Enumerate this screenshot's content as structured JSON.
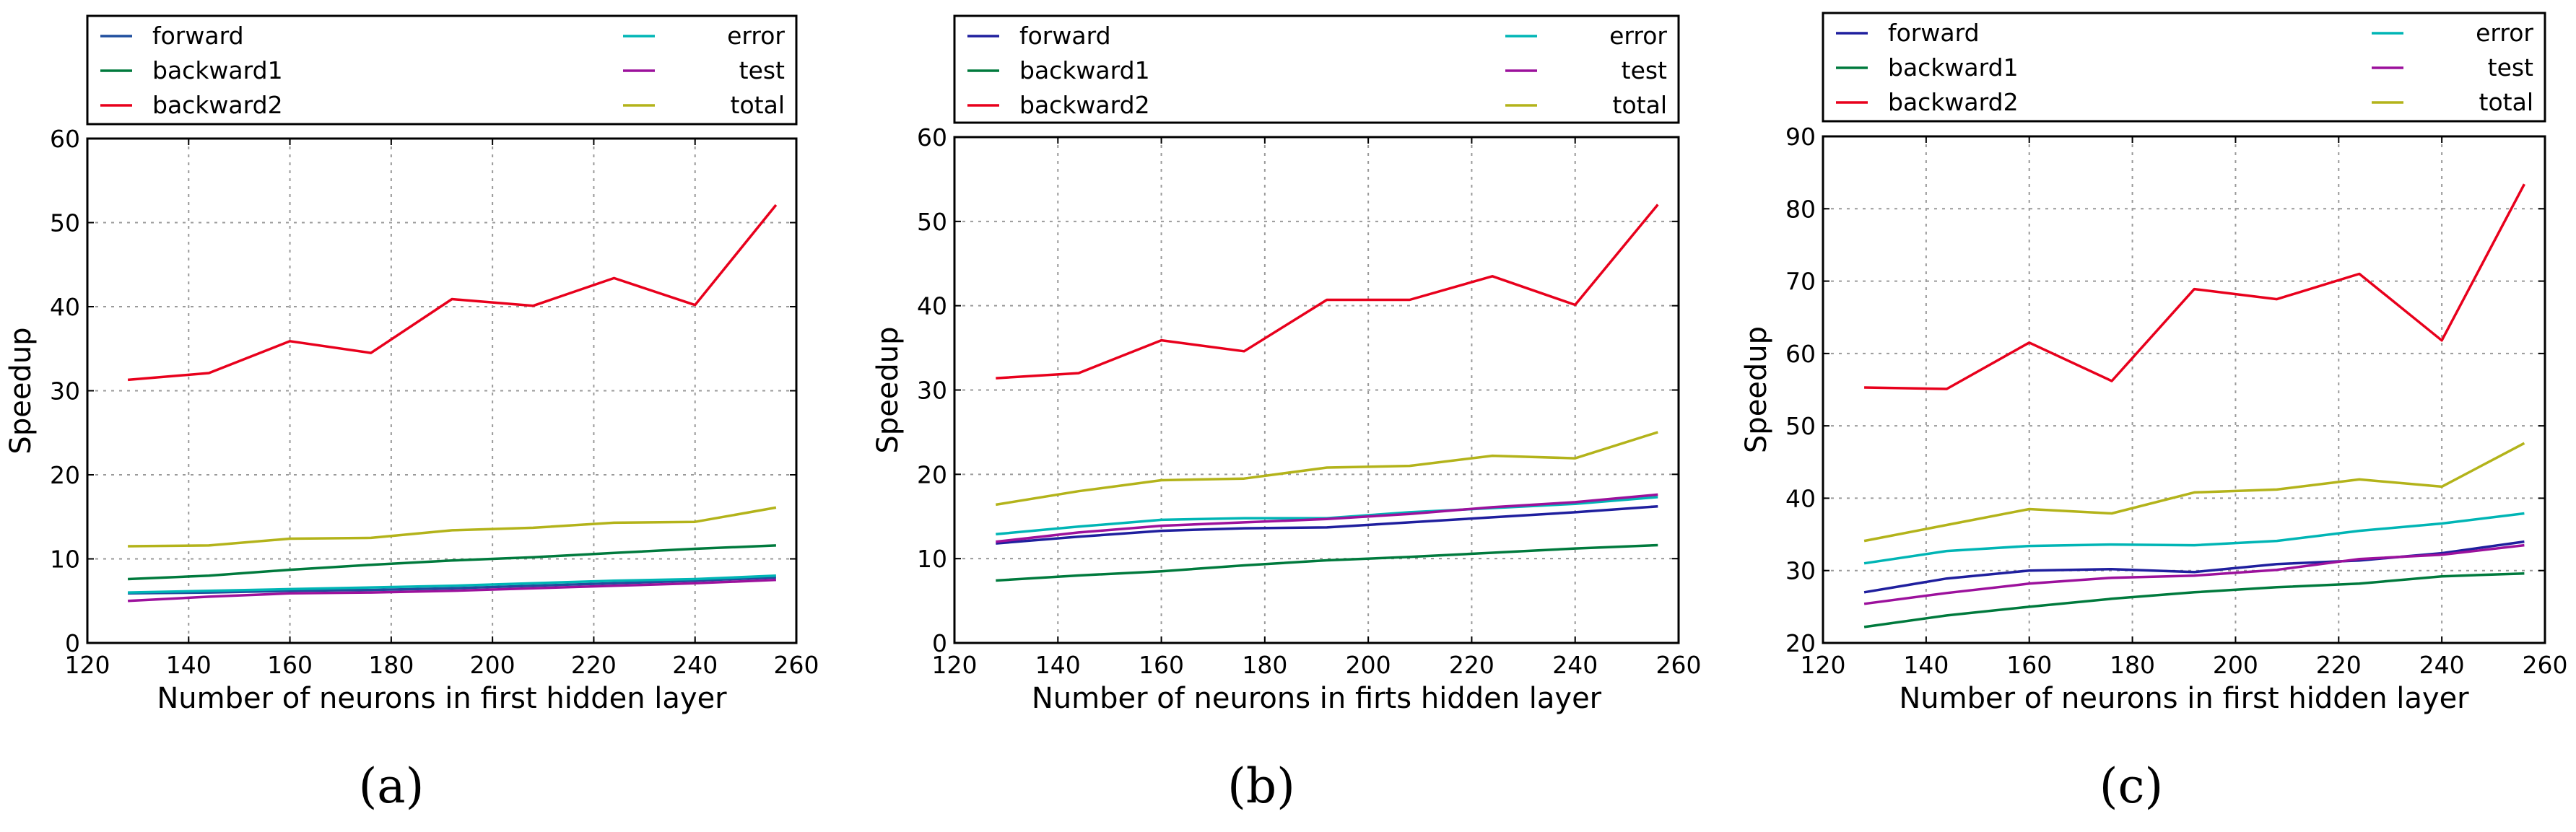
{
  "chart_data": [
    {
      "type": "line",
      "caption": "(a)",
      "xlabel": "Number of neurons in first hidden layer",
      "ylabel": "Speedup",
      "xlim": [
        120,
        260
      ],
      "ylim": [
        0,
        60
      ],
      "xticks": [
        120,
        140,
        160,
        180,
        200,
        220,
        240,
        260
      ],
      "yticks": [
        0,
        10,
        20,
        30,
        40,
        50,
        60
      ],
      "grid": true,
      "legend_position": "top",
      "x": [
        128,
        144,
        160,
        176,
        192,
        208,
        224,
        240,
        256
      ],
      "series": [
        {
          "name": "forward",
          "color": "#1f4e9e",
          "values": [
            5.9,
            6.0,
            6.2,
            6.3,
            6.5,
            6.8,
            7.1,
            7.4,
            7.8
          ]
        },
        {
          "name": "backward1",
          "color": "#007a3d",
          "values": [
            7.6,
            8.0,
            8.7,
            9.3,
            9.8,
            10.2,
            10.7,
            11.2,
            11.6
          ]
        },
        {
          "name": "backward2",
          "color": "#e8001c",
          "values": [
            31.3,
            32.1,
            35.9,
            34.5,
            40.9,
            40.1,
            43.4,
            40.2,
            52.1
          ]
        },
        {
          "name": "error",
          "color": "#00b5b5",
          "values": [
            6.0,
            6.2,
            6.4,
            6.6,
            6.8,
            7.1,
            7.4,
            7.6,
            8.0
          ]
        },
        {
          "name": "test",
          "color": "#9c119c",
          "values": [
            5.0,
            5.5,
            5.9,
            6.0,
            6.2,
            6.5,
            6.8,
            7.1,
            7.5
          ]
        },
        {
          "name": "total",
          "color": "#b3b31a",
          "values": [
            11.5,
            11.6,
            12.4,
            12.5,
            13.4,
            13.7,
            14.3,
            14.4,
            16.1
          ]
        }
      ]
    },
    {
      "type": "line",
      "caption": "(b)",
      "xlabel": "Number of neurons in firts hidden layer",
      "ylabel": "Speedup",
      "xlim": [
        120,
        260
      ],
      "ylim": [
        0,
        60
      ],
      "xticks": [
        120,
        140,
        160,
        180,
        200,
        220,
        240,
        260
      ],
      "yticks": [
        0,
        10,
        20,
        30,
        40,
        50,
        60
      ],
      "grid": true,
      "legend_position": "top",
      "x": [
        128,
        144,
        160,
        176,
        192,
        208,
        224,
        240,
        256
      ],
      "series": [
        {
          "name": "forward",
          "color": "#1f1f9e",
          "values": [
            11.8,
            12.6,
            13.3,
            13.6,
            13.7,
            14.3,
            14.9,
            15.5,
            16.2
          ]
        },
        {
          "name": "backward1",
          "color": "#007a3d",
          "values": [
            7.4,
            8.0,
            8.5,
            9.2,
            9.8,
            10.2,
            10.7,
            11.2,
            11.6
          ]
        },
        {
          "name": "backward2",
          "color": "#e8001c",
          "values": [
            31.4,
            32.0,
            35.9,
            34.6,
            40.7,
            40.7,
            43.5,
            40.1,
            52.0
          ]
        },
        {
          "name": "error",
          "color": "#00b5b5",
          "values": [
            12.9,
            13.8,
            14.6,
            14.8,
            14.8,
            15.5,
            16.0,
            16.5,
            17.3
          ]
        },
        {
          "name": "test",
          "color": "#9c119c",
          "values": [
            12.0,
            13.1,
            13.9,
            14.3,
            14.7,
            15.3,
            16.1,
            16.7,
            17.6
          ]
        },
        {
          "name": "total",
          "color": "#b3b31a",
          "values": [
            16.4,
            18.0,
            19.3,
            19.5,
            20.8,
            21.0,
            22.2,
            21.9,
            25.0
          ]
        }
      ]
    },
    {
      "type": "line",
      "caption": "(c)",
      "xlabel": "Number of neurons in first hidden layer",
      "ylabel": "Speedup",
      "xlim": [
        120,
        260
      ],
      "ylim": [
        20,
        90
      ],
      "xticks": [
        120,
        140,
        160,
        180,
        200,
        220,
        240,
        260
      ],
      "yticks": [
        20,
        30,
        40,
        50,
        60,
        70,
        80,
        90
      ],
      "grid": true,
      "legend_position": "top",
      "x": [
        128,
        144,
        160,
        176,
        192,
        208,
        224,
        240,
        256
      ],
      "series": [
        {
          "name": "forward",
          "color": "#1f1f9e",
          "values": [
            27.0,
            28.9,
            30.0,
            30.2,
            29.8,
            30.9,
            31.4,
            32.4,
            34.0
          ]
        },
        {
          "name": "backward1",
          "color": "#007a3d",
          "values": [
            22.2,
            23.8,
            25.0,
            26.1,
            27.0,
            27.7,
            28.2,
            29.2,
            29.6
          ]
        },
        {
          "name": "backward2",
          "color": "#e8001c",
          "values": [
            55.3,
            55.1,
            61.5,
            56.2,
            68.9,
            67.5,
            71.0,
            61.8,
            83.4
          ]
        },
        {
          "name": "error",
          "color": "#00b5b5",
          "values": [
            31.0,
            32.7,
            33.4,
            33.6,
            33.5,
            34.1,
            35.5,
            36.5,
            37.9
          ]
        },
        {
          "name": "test",
          "color": "#9c119c",
          "values": [
            25.4,
            26.9,
            28.2,
            29.0,
            29.3,
            30.1,
            31.6,
            32.2,
            33.5
          ]
        },
        {
          "name": "total",
          "color": "#b3b31a",
          "values": [
            34.1,
            36.3,
            38.5,
            37.9,
            40.8,
            41.2,
            42.6,
            41.6,
            47.6
          ]
        }
      ]
    }
  ]
}
